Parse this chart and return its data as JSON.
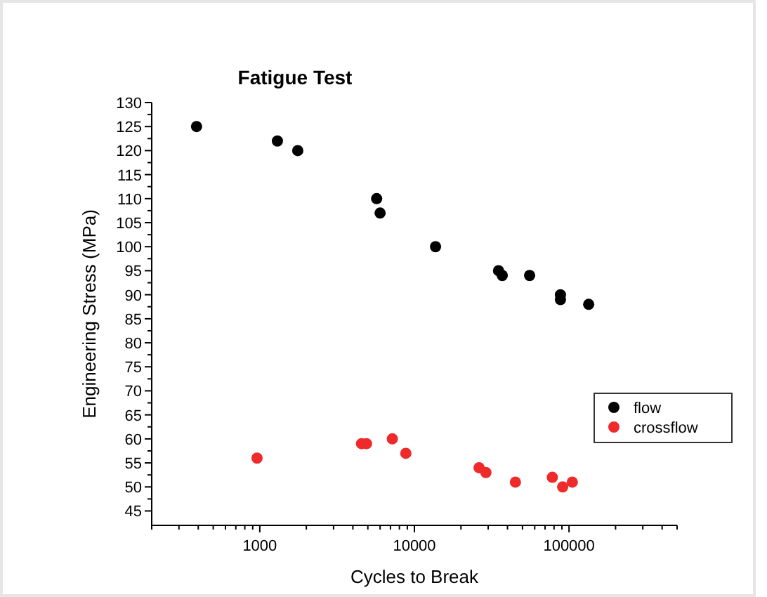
{
  "chart_data": {
    "type": "scatter",
    "title": "Fatigue Test",
    "xlabel": "Cycles to Break",
    "ylabel": "Engineering Stress (MPa)",
    "log": "x",
    "marker": "circle",
    "legend": "right",
    "grid": false,
    "xlim": [
      200,
      500000
    ],
    "xticks": [
      {
        "value": 200,
        "label": null
      },
      {
        "value": 300,
        "label": null
      },
      {
        "value": 400,
        "label": null
      },
      {
        "value": 500,
        "label": null
      },
      {
        "value": 600,
        "label": null
      },
      {
        "value": 700,
        "label": null
      },
      {
        "value": 800,
        "label": null
      },
      {
        "value": 900,
        "label": null
      },
      1000,
      {
        "value": 2000,
        "label": null
      },
      {
        "value": 3000,
        "label": null
      },
      {
        "value": 4000,
        "label": null
      },
      {
        "value": 5000,
        "label": null
      },
      {
        "value": 6000,
        "label": null
      },
      {
        "value": 7000,
        "label": null
      },
      {
        "value": 8000,
        "label": null
      },
      {
        "value": 9000,
        "label": null
      },
      10000,
      {
        "value": 20000,
        "label": null
      },
      {
        "value": 30000,
        "label": null
      },
      {
        "value": 40000,
        "label": null
      },
      {
        "value": 50000,
        "label": null
      },
      {
        "value": 60000,
        "label": null
      },
      {
        "value": 70000,
        "label": null
      },
      {
        "value": 80000,
        "label": null
      },
      {
        "value": 90000,
        "label": null
      },
      100000,
      {
        "value": 200000,
        "label": null
      },
      {
        "value": 300000,
        "label": null
      },
      {
        "value": 400000,
        "label": null
      },
      {
        "value": 500000,
        "label": null
      }
    ],
    "ylim": [
      42,
      130
    ],
    "yticks": [
      45,
      {
        "value": 47.5,
        "label": null
      },
      50,
      {
        "value": 52.5,
        "label": null
      },
      55,
      {
        "value": 57.5,
        "label": null
      },
      60,
      {
        "value": 62.5,
        "label": null
      },
      65,
      {
        "value": 67.5,
        "label": null
      },
      70,
      {
        "value": 72.5,
        "label": null
      },
      75,
      {
        "value": 77.5,
        "label": null
      },
      80,
      {
        "value": 82.5,
        "label": null
      },
      85,
      {
        "value": 87.5,
        "label": null
      },
      90,
      {
        "value": 92.5,
        "label": null
      },
      95,
      {
        "value": 97.5,
        "label": null
      },
      100,
      {
        "value": 102.5,
        "label": null
      },
      105,
      {
        "value": 107.5,
        "label": null
      },
      110,
      {
        "value": 112.5,
        "label": null
      },
      115,
      {
        "value": 117.5,
        "label": null
      },
      120,
      {
        "value": 122.5,
        "label": null
      },
      125,
      {
        "value": 127.5,
        "label": null
      },
      130
    ],
    "series": [
      {
        "name": "flow",
        "color": "#000000",
        "x": [
          390,
          1300,
          1760,
          5700,
          6000,
          13700,
          35000,
          37000,
          55600,
          88000,
          88000,
          134000
        ],
        "values": [
          125,
          122,
          120,
          110,
          107,
          100,
          95,
          94,
          94,
          90,
          89,
          88
        ]
      },
      {
        "name": "crossflow",
        "color": "#ee2a2a",
        "x": [
          960,
          4550,
          4900,
          7200,
          8800,
          26200,
          29000,
          45000,
          78000,
          91000,
          105000
        ],
        "values": [
          56,
          59,
          59,
          60,
          57,
          54,
          53,
          51,
          52,
          50,
          51
        ]
      }
    ]
  }
}
